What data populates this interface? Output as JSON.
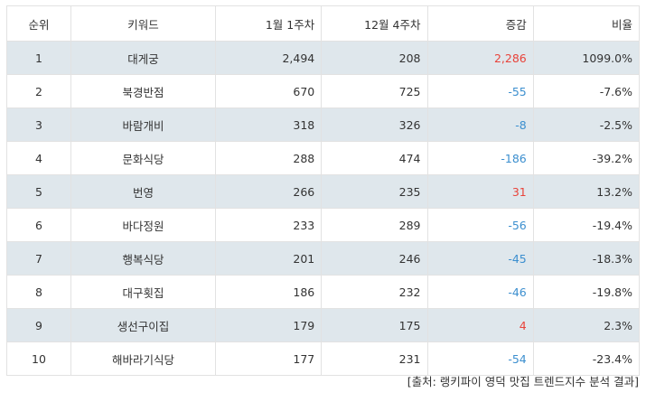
{
  "table": {
    "headers": {
      "rank": "순위",
      "keyword": "키워드",
      "jan_week1": "1월 1주차",
      "dec_week4": "12월 4주차",
      "change": "증감",
      "ratio": "비율"
    },
    "rows": [
      {
        "rank": "1",
        "keyword": "대게궁",
        "jan_week1": "2,494",
        "dec_week4": "208",
        "change": "2,286",
        "ratio": "1099.0%",
        "direction": "up"
      },
      {
        "rank": "2",
        "keyword": "북경반점",
        "jan_week1": "670",
        "dec_week4": "725",
        "change": "-55",
        "ratio": "-7.6%",
        "direction": "down"
      },
      {
        "rank": "3",
        "keyword": "바람개비",
        "jan_week1": "318",
        "dec_week4": "326",
        "change": "-8",
        "ratio": "-2.5%",
        "direction": "down"
      },
      {
        "rank": "4",
        "keyword": "문화식당",
        "jan_week1": "288",
        "dec_week4": "474",
        "change": "-186",
        "ratio": "-39.2%",
        "direction": "down"
      },
      {
        "rank": "5",
        "keyword": "번영",
        "jan_week1": "266",
        "dec_week4": "235",
        "change": "31",
        "ratio": "13.2%",
        "direction": "up"
      },
      {
        "rank": "6",
        "keyword": "바다정원",
        "jan_week1": "233",
        "dec_week4": "289",
        "change": "-56",
        "ratio": "-19.4%",
        "direction": "down"
      },
      {
        "rank": "7",
        "keyword": "행복식당",
        "jan_week1": "201",
        "dec_week4": "246",
        "change": "-45",
        "ratio": "-18.3%",
        "direction": "down"
      },
      {
        "rank": "8",
        "keyword": "대구횟집",
        "jan_week1": "186",
        "dec_week4": "232",
        "change": "-46",
        "ratio": "-19.8%",
        "direction": "down"
      },
      {
        "rank": "9",
        "keyword": "생선구이집",
        "jan_week1": "179",
        "dec_week4": "175",
        "change": "4",
        "ratio": "2.3%",
        "direction": "up"
      },
      {
        "rank": "10",
        "keyword": "해바라기식당",
        "jan_week1": "177",
        "dec_week4": "231",
        "change": "-54",
        "ratio": "-23.4%",
        "direction": "down"
      }
    ]
  },
  "source": "[출처: 랭키파이 영덕 맛집 트렌드지수 분석 결과]",
  "colors": {
    "up": "#e8433a",
    "down": "#3c8fcf",
    "stripe": "#dfe7ec",
    "border": "#e2e2e2"
  }
}
